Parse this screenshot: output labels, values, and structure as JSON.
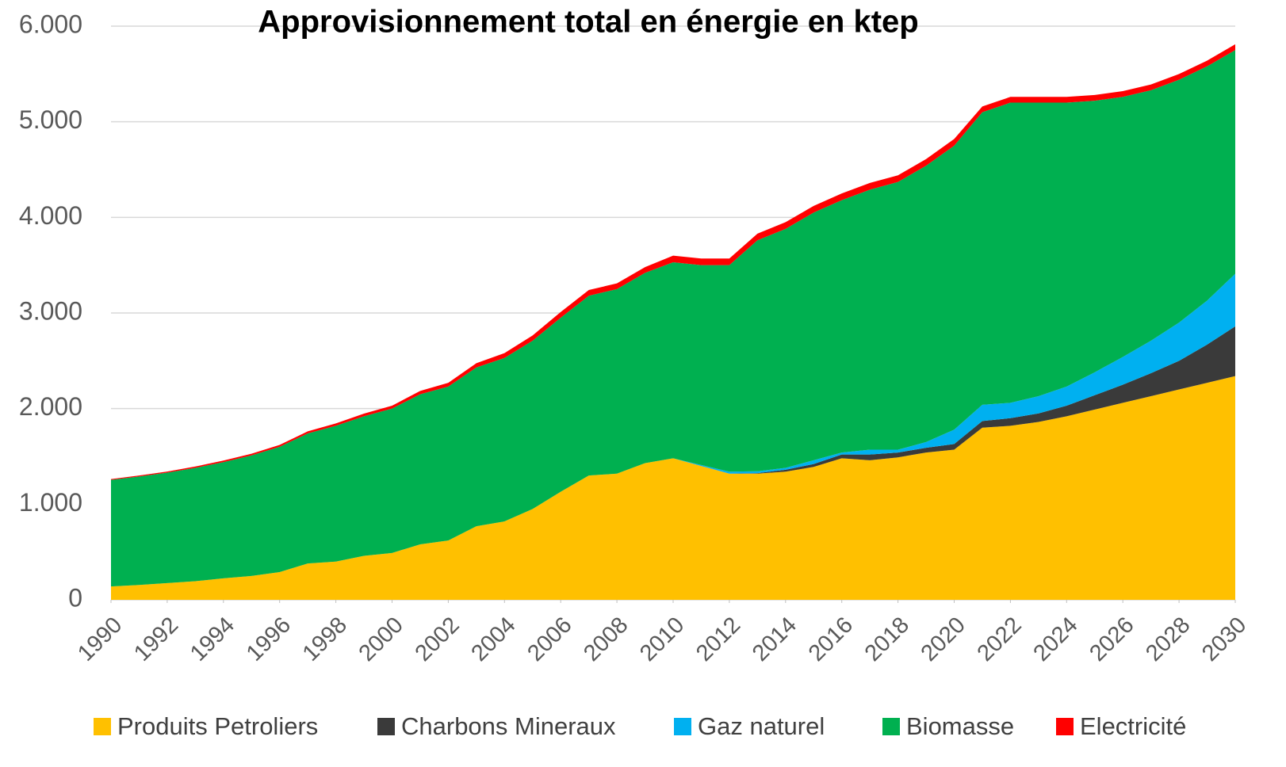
{
  "chart_data": {
    "type": "stacked_area",
    "title": "Approvisionnement total en énergie en ktep",
    "x": [
      1990,
      1991,
      1992,
      1993,
      1994,
      1995,
      1996,
      1997,
      1998,
      1999,
      2000,
      2001,
      2002,
      2003,
      2004,
      2005,
      2006,
      2007,
      2008,
      2009,
      2010,
      2011,
      2012,
      2013,
      2014,
      2015,
      2016,
      2017,
      2018,
      2019,
      2020,
      2021,
      2022,
      2023,
      2024,
      2025,
      2026,
      2027,
      2028,
      2029,
      2030
    ],
    "series": [
      {
        "name": "Produits Petroliers",
        "color": "#ffc000",
        "values": [
          140,
          155,
          175,
          195,
          225,
          250,
          290,
          380,
          400,
          460,
          490,
          580,
          620,
          770,
          820,
          950,
          1130,
          1300,
          1320,
          1430,
          1480,
          1400,
          1320,
          1320,
          1340,
          1390,
          1480,
          1460,
          1490,
          1540,
          1570,
          1800,
          1820,
          1860,
          1920,
          1990,
          2060,
          2130,
          2200,
          2270,
          2340
        ]
      },
      {
        "name": "Charbons Mineraux",
        "color": "#3a3a3a",
        "values": [
          0,
          0,
          0,
          0,
          0,
          0,
          0,
          0,
          0,
          0,
          0,
          0,
          0,
          0,
          0,
          0,
          0,
          0,
          0,
          0,
          0,
          0,
          0,
          5,
          20,
          30,
          40,
          60,
          50,
          50,
          60,
          70,
          80,
          90,
          110,
          150,
          190,
          240,
          300,
          400,
          520
        ]
      },
      {
        "name": "Gaz naturel",
        "color": "#00b0f0",
        "values": [
          0,
          0,
          0,
          0,
          0,
          0,
          0,
          0,
          0,
          0,
          0,
          0,
          0,
          0,
          0,
          0,
          0,
          0,
          0,
          0,
          0,
          10,
          20,
          20,
          20,
          40,
          20,
          50,
          30,
          60,
          150,
          170,
          160,
          180,
          200,
          240,
          290,
          340,
          400,
          460,
          550
        ]
      },
      {
        "name": "Biomasse",
        "color": "#00b050",
        "values": [
          1115,
          1135,
          1155,
          1185,
          1215,
          1260,
          1310,
          1360,
          1420,
          1460,
          1510,
          1570,
          1610,
          1660,
          1710,
          1760,
          1820,
          1880,
          1930,
          1990,
          2050,
          2090,
          2160,
          2415,
          2500,
          2590,
          2640,
          2720,
          2800,
          2890,
          2970,
          3060,
          3140,
          3070,
          2970,
          2840,
          2720,
          2620,
          2540,
          2450,
          2340
        ]
      },
      {
        "name": "Electricité",
        "color": "#ff0000",
        "values": [
          8,
          10,
          12,
          14,
          16,
          18,
          20,
          22,
          25,
          28,
          30,
          35,
          40,
          45,
          50,
          55,
          60,
          60,
          60,
          60,
          70,
          70,
          70,
          70,
          70,
          70,
          70,
          70,
          70,
          70,
          70,
          60,
          60,
          60,
          60,
          60,
          60,
          60,
          60,
          60,
          60
        ]
      }
    ],
    "xlim": [
      1990,
      2030
    ],
    "xticks": [
      1990,
      1992,
      1994,
      1996,
      1998,
      2000,
      2002,
      2004,
      2006,
      2008,
      2010,
      2012,
      2014,
      2016,
      2018,
      2020,
      2022,
      2024,
      2026,
      2028,
      2030
    ],
    "ylim": [
      0,
      6000
    ],
    "yticks": [
      {
        "value": 0,
        "label": "0"
      },
      {
        "value": 1000,
        "label": "1.000"
      },
      {
        "value": 2000,
        "label": "2.000"
      },
      {
        "value": 3000,
        "label": "3.000"
      },
      {
        "value": 4000,
        "label": "4.000"
      },
      {
        "value": 5000,
        "label": "5.000"
      },
      {
        "value": 6000,
        "label": "6.000"
      }
    ],
    "grid": true,
    "legend": "bottom"
  }
}
